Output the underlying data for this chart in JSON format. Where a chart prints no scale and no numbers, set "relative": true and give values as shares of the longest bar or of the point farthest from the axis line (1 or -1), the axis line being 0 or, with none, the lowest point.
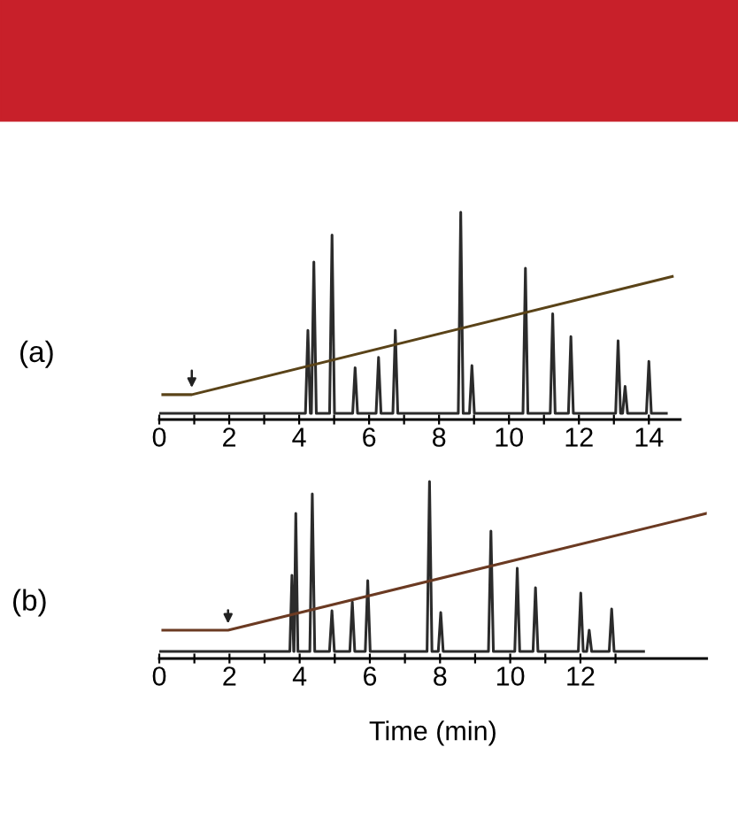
{
  "chart_data": [
    {
      "type": "line",
      "relative": true,
      "annotations": [
        "(a)"
      ],
      "tick_labels": "x",
      "xlim": [
        0,
        14.9
      ],
      "xticks": [
        0,
        {
          "value": 1,
          "label": null
        },
        2,
        {
          "value": 3,
          "label": null
        },
        4,
        {
          "value": 5,
          "label": null
        },
        6,
        {
          "value": 7,
          "label": null
        },
        8,
        {
          "value": 9,
          "label": null
        },
        10,
        {
          "value": 11,
          "label": null
        },
        12,
        {
          "value": 13,
          "label": null
        },
        14
      ],
      "series": [
        {
          "color": "#2b2b2b",
          "x": [
            0,
            4.18,
            4.25,
            4.32,
            4.35,
            4.42,
            4.49,
            4.87,
            4.94,
            5.01,
            5.53,
            5.6,
            5.67,
            6.2,
            6.27,
            6.34,
            6.68,
            6.75,
            6.82,
            8.55,
            8.62,
            8.69,
            8.87,
            8.94,
            9.01,
            10.4,
            10.47,
            10.54,
            11.18,
            11.25,
            11.32,
            11.7,
            11.77,
            11.84,
            13.05,
            13.12,
            13.19,
            13.25,
            13.32,
            13.39,
            13.93,
            14.0,
            14.07,
            14.5
          ],
          "values": [
            0.03,
            0.03,
            0.43,
            0.03,
            0.03,
            0.76,
            0.03,
            0.03,
            0.89,
            0.03,
            0.03,
            0.25,
            0.03,
            0.03,
            0.3,
            0.03,
            0.03,
            0.43,
            0.03,
            0.03,
            1.0,
            0.03,
            0.03,
            0.26,
            0.03,
            0.03,
            0.73,
            0.03,
            0.03,
            0.51,
            0.03,
            0.03,
            0.4,
            0.03,
            0.03,
            0.38,
            0.03,
            0.03,
            0.16,
            0.03,
            0.03,
            0.28,
            0.03,
            0.03
          ]
        },
        {
          "color": "#5a4318",
          "x": [
            0.1,
            0.93,
            14.67
          ],
          "values": [
            0.12,
            0.12,
            0.69
          ]
        }
      ]
    },
    {
      "type": "line",
      "relative": true,
      "annotations": [
        "(b)"
      ],
      "tick_labels": "x",
      "xlabel": "Time (min)",
      "xlim": [
        0,
        15.6
      ],
      "xticks": [
        0,
        {
          "value": 1,
          "label": null
        },
        2,
        {
          "value": 3,
          "label": null
        },
        4,
        {
          "value": 5,
          "label": null
        },
        6,
        {
          "value": 7,
          "label": null
        },
        8,
        {
          "value": 9,
          "label": null
        },
        10,
        {
          "value": 11,
          "label": null
        },
        12,
        {
          "value": 13,
          "label": null
        }
      ],
      "series": [
        {
          "color": "#2b2b2b",
          "x": [
            0,
            3.72,
            3.78,
            3.83,
            3.84,
            3.89,
            3.95,
            4.29,
            4.36,
            4.43,
            4.85,
            4.92,
            4.99,
            5.43,
            5.5,
            5.57,
            5.87,
            5.94,
            6.01,
            7.63,
            7.7,
            7.77,
            7.95,
            8.02,
            8.09,
            9.38,
            9.45,
            9.52,
            10.13,
            10.2,
            10.27,
            10.65,
            10.72,
            10.79,
            11.94,
            12.01,
            12.08,
            12.18,
            12.25,
            12.32,
            12.82,
            12.89,
            12.96,
            13.8
          ],
          "values": [
            0.04,
            0.04,
            0.47,
            0.04,
            0.04,
            0.82,
            0.04,
            0.04,
            0.93,
            0.04,
            0.04,
            0.27,
            0.04,
            0.04,
            0.32,
            0.04,
            0.04,
            0.44,
            0.04,
            0.04,
            1.0,
            0.04,
            0.04,
            0.26,
            0.04,
            0.04,
            0.72,
            0.04,
            0.04,
            0.51,
            0.04,
            0.04,
            0.4,
            0.04,
            0.04,
            0.37,
            0.04,
            0.04,
            0.16,
            0.04,
            0.04,
            0.28,
            0.04,
            0.04
          ]
        },
        {
          "color": "#6b3a22",
          "x": [
            0.1,
            1.96,
            15.6
          ],
          "values": [
            0.16,
            0.16,
            0.82
          ]
        }
      ]
    }
  ]
}
